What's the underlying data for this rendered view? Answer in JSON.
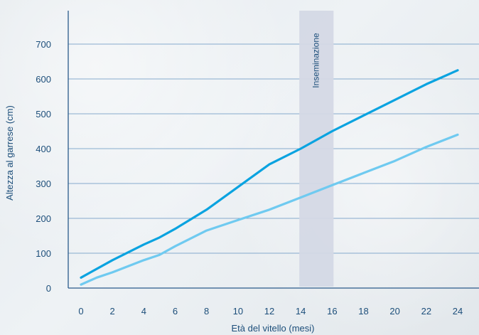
{
  "chart_data": {
    "type": "line",
    "title": "",
    "xlabel": "Età del vitello (mesi)",
    "ylabel": "Altezza al garrese (cm)",
    "x_ticks": [
      "0",
      "2",
      "4",
      "6",
      "8",
      "10",
      "12",
      "14",
      "16",
      "18",
      "20",
      "22",
      "24"
    ],
    "y_ticks": [
      "0",
      "100",
      "200",
      "300",
      "400",
      "500",
      "600",
      "700"
    ],
    "xlim": [
      0,
      24
    ],
    "ylim": [
      0,
      700
    ],
    "grid": "horizontal",
    "annotation_band": {
      "label": "Inseminazione",
      "x_start": 14,
      "x_end": 16,
      "color": "#d4d8e5"
    },
    "series": [
      {
        "color": "#0aa3e0",
        "x": [
          0,
          2,
          4,
          5,
          6,
          8,
          10,
          12,
          14,
          16,
          18,
          20,
          22,
          24
        ],
        "y": [
          30,
          80,
          125,
          145,
          170,
          225,
          290,
          355,
          400,
          450,
          495,
          540,
          585,
          625
        ]
      },
      {
        "color": "#6fcaf0",
        "x": [
          0,
          1,
          2,
          4,
          5,
          6,
          8,
          10,
          12,
          14,
          16,
          18,
          20,
          22,
          24
        ],
        "y": [
          10,
          30,
          45,
          80,
          95,
          120,
          165,
          195,
          225,
          260,
          295,
          330,
          365,
          405,
          440
        ]
      }
    ]
  }
}
